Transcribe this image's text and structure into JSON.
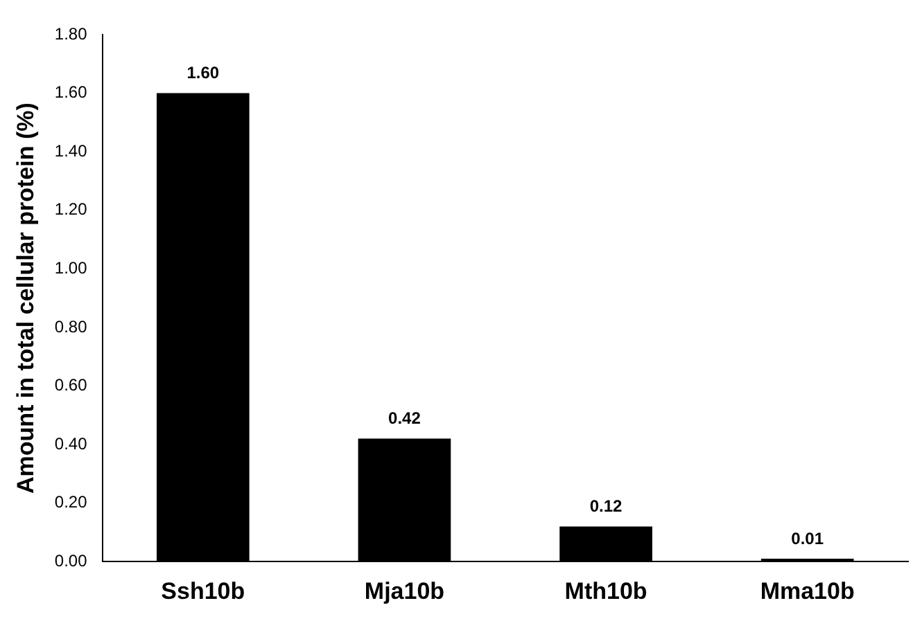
{
  "chart_data": {
    "type": "bar",
    "ylabel": "Amount in total cellular protein (%)",
    "categories": [
      "Ssh10b",
      "Mja10b",
      "Mth10b",
      "Mma10b"
    ],
    "values": [
      1.6,
      0.42,
      0.12,
      0.01
    ],
    "value_labels": [
      "1.60",
      "0.42",
      "0.12",
      "0.01"
    ],
    "color": "#000000",
    "ylim": [
      0,
      1.8
    ],
    "yticks": [
      {
        "value": 0,
        "label": "0.00"
      },
      {
        "value": 0.2,
        "label": "0.20"
      },
      {
        "value": 0.4,
        "label": "0.40"
      },
      {
        "value": 0.6,
        "label": "0.60"
      },
      {
        "value": 0.8,
        "label": "0.80"
      },
      {
        "value": 1.0,
        "label": "1.00"
      },
      {
        "value": 1.2,
        "label": "1.20"
      },
      {
        "value": 1.4,
        "label": "1.40"
      },
      {
        "value": 1.6,
        "label": "1.60"
      },
      {
        "value": 1.8,
        "label": "1.80"
      }
    ],
    "grid": false,
    "legend": false
  }
}
